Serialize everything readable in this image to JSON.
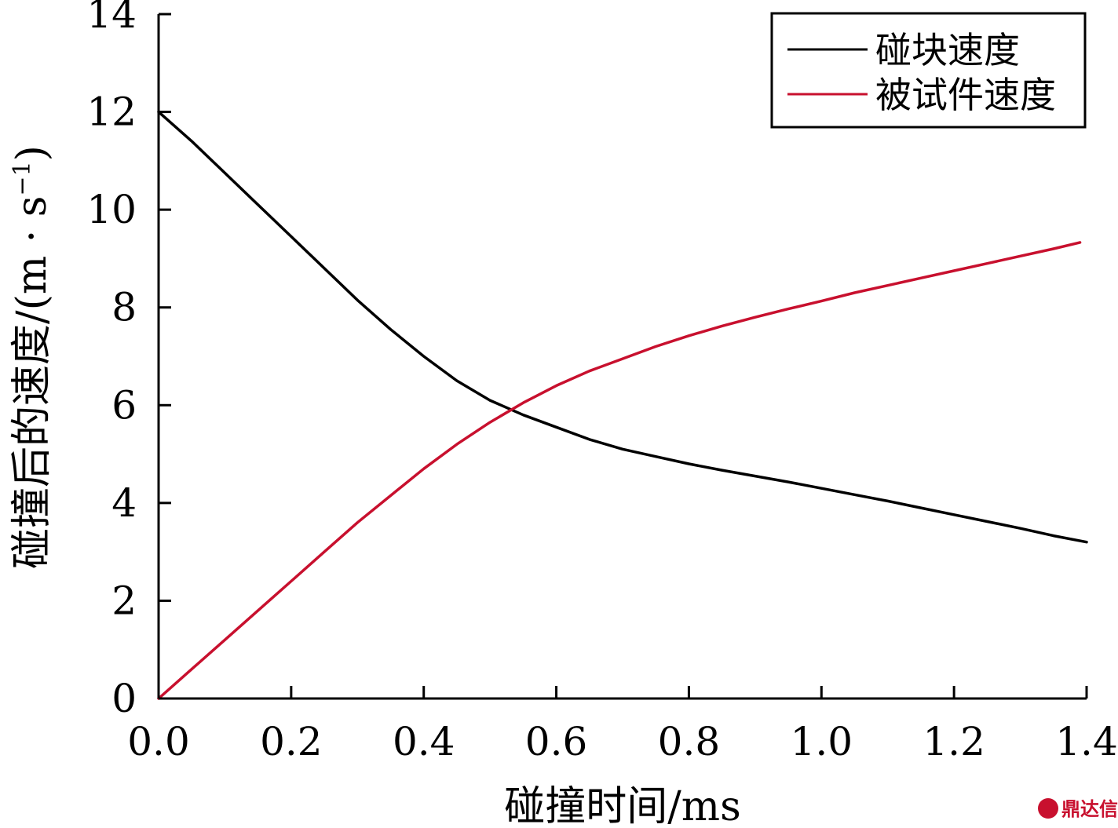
{
  "chart_data": {
    "type": "line",
    "xlabel": "碰撞时间/ms",
    "ylabel": "碰撞后的速度/(m · s",
    "ylabel_sup": "−1",
    "ylabel_close": ")",
    "xlim": [
      0.0,
      1.4
    ],
    "ylim": [
      0,
      14
    ],
    "xticks": [
      "0.0",
      "0.2",
      "0.4",
      "0.6",
      "0.8",
      "1.0",
      "1.2",
      "1.4"
    ],
    "yticks": [
      "0",
      "2",
      "4",
      "6",
      "8",
      "10",
      "12",
      "14"
    ],
    "grid": false,
    "legend_position": "top-right",
    "series": [
      {
        "name": "碰块速度",
        "color": "#000000",
        "x": [
          0.0,
          0.05,
          0.1,
          0.15,
          0.2,
          0.25,
          0.3,
          0.35,
          0.4,
          0.45,
          0.5,
          0.55,
          0.6,
          0.65,
          0.7,
          0.75,
          0.8,
          0.85,
          0.9,
          0.95,
          1.0,
          1.05,
          1.1,
          1.15,
          1.2,
          1.25,
          1.3,
          1.35,
          1.4
        ],
        "y": [
          12.0,
          11.4,
          10.75,
          10.1,
          9.45,
          8.8,
          8.15,
          7.55,
          7.0,
          6.5,
          6.1,
          5.8,
          5.55,
          5.3,
          5.1,
          4.95,
          4.8,
          4.67,
          4.55,
          4.43,
          4.3,
          4.17,
          4.04,
          3.9,
          3.76,
          3.62,
          3.48,
          3.33,
          3.2
        ]
      },
      {
        "name": "被试件速度",
        "color": "#c8102e",
        "x": [
          0.0,
          0.05,
          0.1,
          0.15,
          0.2,
          0.25,
          0.3,
          0.35,
          0.4,
          0.45,
          0.5,
          0.55,
          0.6,
          0.65,
          0.7,
          0.75,
          0.8,
          0.85,
          0.9,
          0.95,
          1.0,
          1.05,
          1.1,
          1.15,
          1.2,
          1.25,
          1.3,
          1.35,
          1.39
        ],
        "y": [
          0.0,
          0.6,
          1.2,
          1.8,
          2.4,
          3.0,
          3.6,
          4.15,
          4.7,
          5.2,
          5.65,
          6.05,
          6.4,
          6.7,
          6.95,
          7.2,
          7.42,
          7.62,
          7.8,
          7.97,
          8.13,
          8.3,
          8.45,
          8.6,
          8.75,
          8.9,
          9.05,
          9.2,
          9.33
        ]
      }
    ]
  },
  "watermark": {
    "text": "鼎达信"
  }
}
